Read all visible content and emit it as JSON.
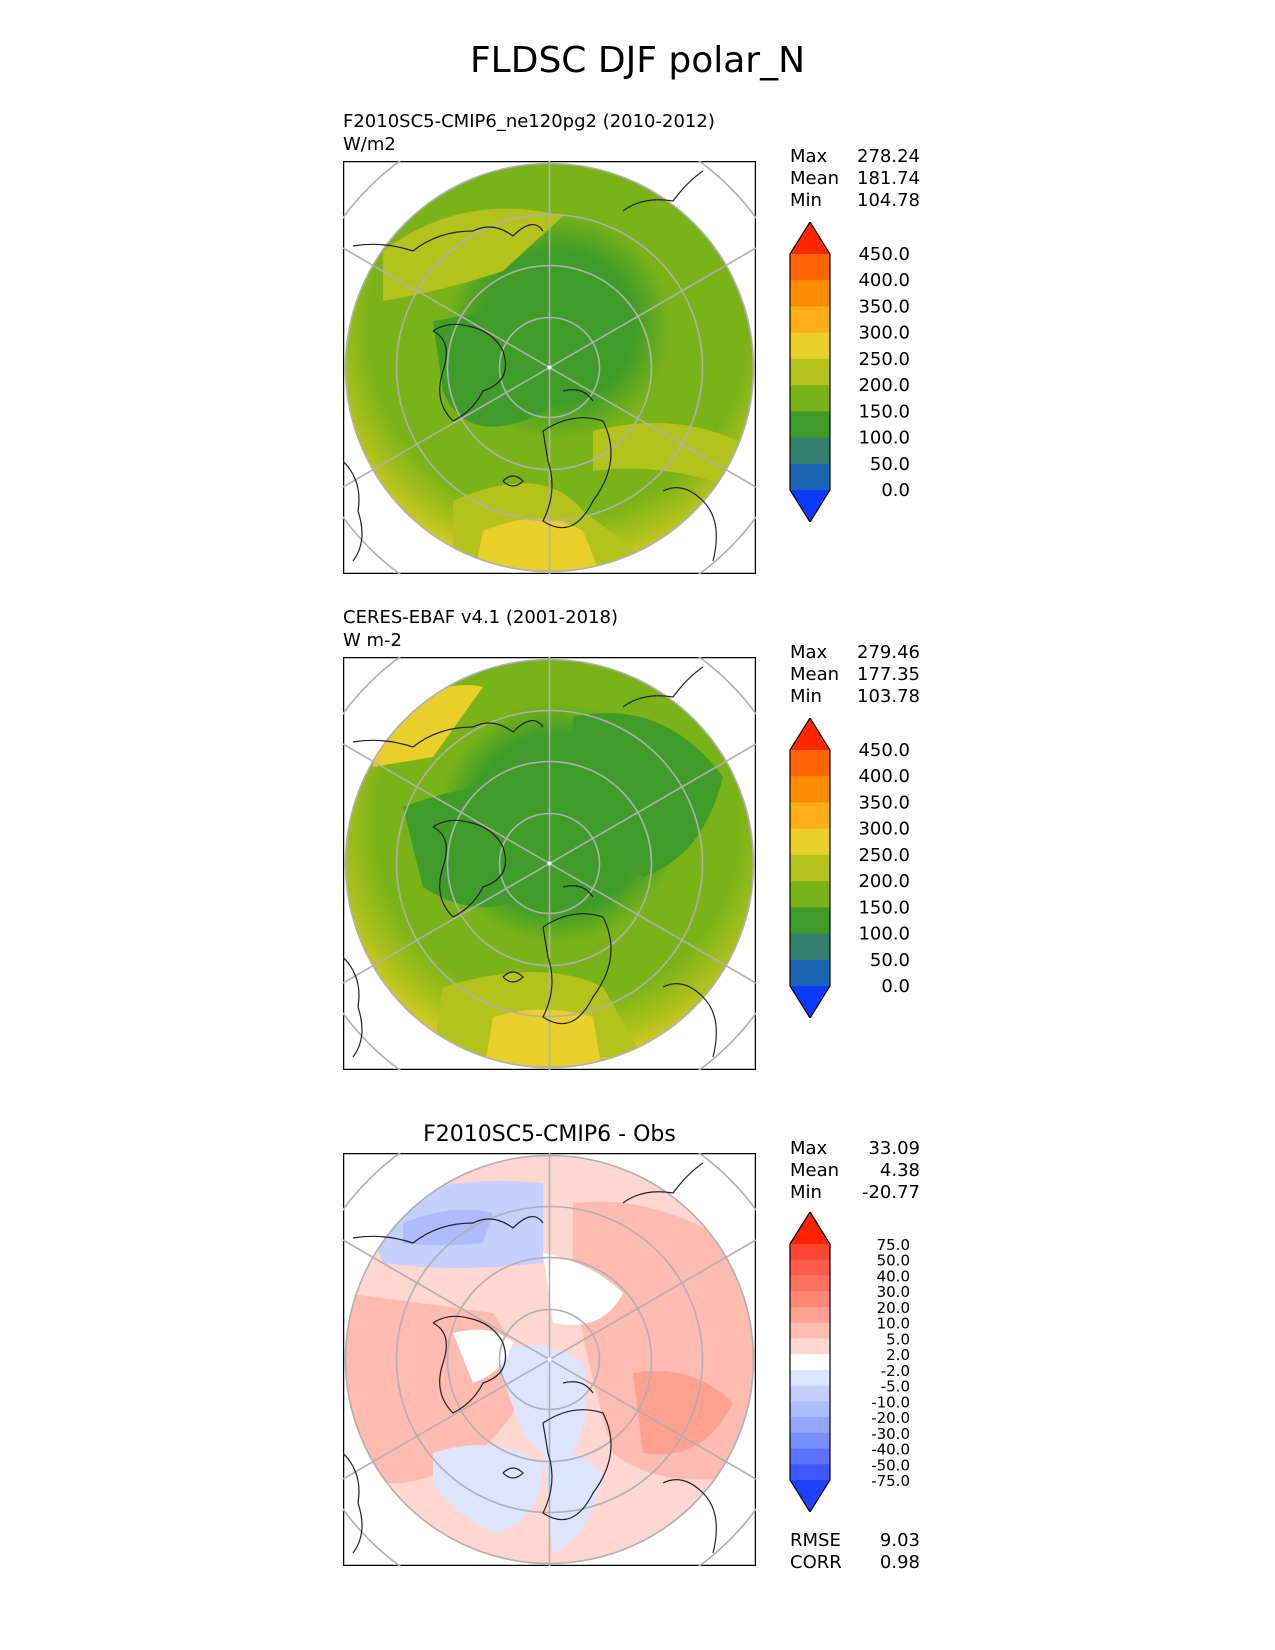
{
  "title": "FLDSC DJF polar_N",
  "panels": [
    {
      "name": "test",
      "case_line": "F2010SC5-CMIP6_ne120pg2 (2010-2012)",
      "units_line": "W/m2",
      "stats": [
        {
          "label": "Max",
          "value": "278.24"
        },
        {
          "label": "Mean",
          "value": "181.74"
        },
        {
          "label": "Min",
          "value": "104.78"
        }
      ]
    },
    {
      "name": "reference",
      "case_line": "CERES-EBAF v4.1 (2001-2018)",
      "units_line": "W m-2",
      "stats": [
        {
          "label": "Max",
          "value": "279.46"
        },
        {
          "label": "Mean",
          "value": "177.35"
        },
        {
          "label": "Min",
          "value": "103.78"
        }
      ]
    },
    {
      "name": "difference",
      "centered_title": "F2010SC5-CMIP6 - Obs",
      "stats": [
        {
          "label": "Max",
          "value": "33.09"
        },
        {
          "label": "Mean",
          "value": "4.38"
        },
        {
          "label": "Min",
          "value": "-20.77"
        }
      ],
      "metrics": [
        {
          "label": "RMSE",
          "value": "9.03"
        },
        {
          "label": "CORR",
          "value": "0.98"
        }
      ]
    }
  ],
  "colorbars": {
    "field": {
      "labels": [
        "450.0",
        "400.0",
        "350.0",
        "300.0",
        "250.0",
        "200.0",
        "150.0",
        "100.0",
        "50.0",
        "0.0"
      ],
      "colors_top_to_bottom": [
        "#ff2600",
        "#ff6400",
        "#ff8c00",
        "#ffad1a",
        "#e8cf2a",
        "#b3c21d",
        "#7ab317",
        "#3f9c29",
        "#338070",
        "#1a66b3",
        "#0a3aff"
      ]
    },
    "diff": {
      "labels": [
        "75.0",
        "50.0",
        "40.0",
        "30.0",
        "20.0",
        "10.0",
        "5.0",
        "2.0",
        "-2.0",
        "-5.0",
        "-10.0",
        "-20.0",
        "-30.0",
        "-40.0",
        "-50.0",
        "-75.0"
      ],
      "colors_top_to_bottom": [
        "#ff2200",
        "#ff4433",
        "#ff5c4a",
        "#ff7260",
        "#ff8877",
        "#ffa090",
        "#ffbbb0",
        "#ffd6d0",
        "#ffffff",
        "#dde4ff",
        "#c6d0ff",
        "#adbbff",
        "#93a5ff",
        "#7a8fff",
        "#5a73ff",
        "#3f58ff",
        "#1f40ff"
      ]
    }
  },
  "chart_data": [
    {
      "type": "heatmap",
      "projection": "north polar stereographic",
      "title": "F2010SC5-CMIP6_ne120pg2 (2010-2012)",
      "units": "W/m2",
      "max": 278.24,
      "mean": 181.74,
      "min": 104.78,
      "contour_levels": [
        0,
        50,
        100,
        150,
        200,
        250,
        300,
        350,
        400,
        450
      ]
    },
    {
      "type": "heatmap",
      "projection": "north polar stereographic",
      "title": "CERES-EBAF v4.1 (2001-2018)",
      "units": "W m-2",
      "max": 279.46,
      "mean": 177.35,
      "min": 103.78,
      "contour_levels": [
        0,
        50,
        100,
        150,
        200,
        250,
        300,
        350,
        400,
        450
      ]
    },
    {
      "type": "heatmap",
      "projection": "north polar stereographic",
      "title": "F2010SC5-CMIP6 - Obs",
      "max": 33.09,
      "mean": 4.38,
      "min": -20.77,
      "rmse": 9.03,
      "corr": 0.98,
      "contour_levels": [
        -75,
        -50,
        -40,
        -30,
        -20,
        -10,
        -5,
        -2,
        2,
        5,
        10,
        20,
        30,
        40,
        50,
        75
      ]
    }
  ]
}
